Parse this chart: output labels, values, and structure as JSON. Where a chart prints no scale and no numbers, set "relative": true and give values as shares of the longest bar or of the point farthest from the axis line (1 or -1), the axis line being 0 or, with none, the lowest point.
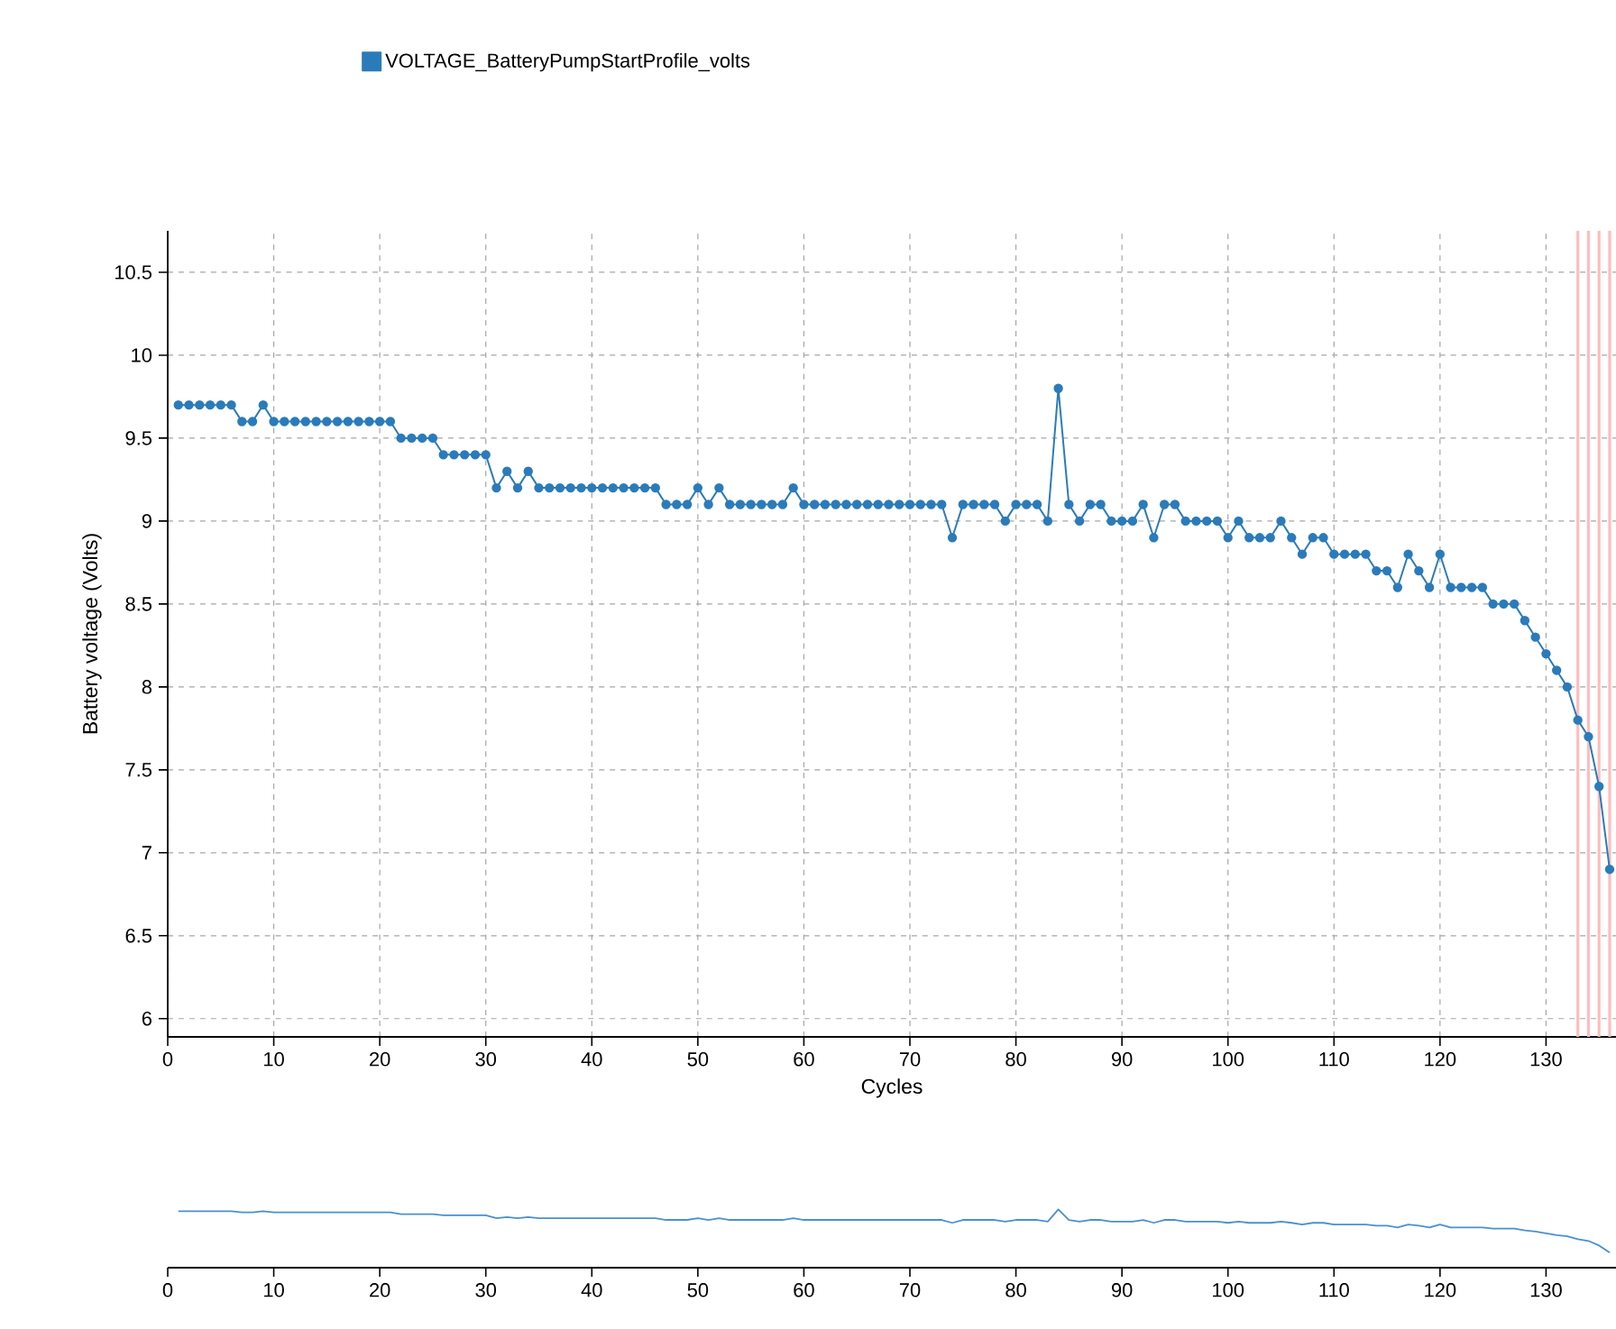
{
  "chart_data": [
    {
      "type": "line",
      "xlabel": "Cycles",
      "ylabel": "Battery voltage (Volts)",
      "x": [
        1,
        2,
        3,
        4,
        5,
        6,
        7,
        8,
        9,
        10,
        11,
        12,
        13,
        14,
        15,
        16,
        17,
        18,
        19,
        20,
        21,
        22,
        23,
        24,
        25,
        26,
        27,
        28,
        29,
        30,
        31,
        32,
        33,
        34,
        35,
        36,
        37,
        38,
        39,
        40,
        41,
        42,
        43,
        44,
        45,
        46,
        47,
        48,
        49,
        50,
        51,
        52,
        53,
        54,
        55,
        56,
        57,
        58,
        59,
        60,
        61,
        62,
        63,
        64,
        65,
        66,
        67,
        68,
        69,
        70,
        71,
        72,
        73,
        74,
        75,
        76,
        77,
        78,
        79,
        80,
        81,
        82,
        83,
        84,
        85,
        86,
        87,
        88,
        89,
        90,
        91,
        92,
        93,
        94,
        95,
        96,
        97,
        98,
        99,
        100,
        101,
        102,
        103,
        104,
        105,
        106,
        107,
        108,
        109,
        110,
        111,
        112,
        113,
        114,
        115,
        116,
        117,
        118,
        119,
        120,
        121,
        122,
        123,
        124,
        125,
        126,
        127,
        128,
        129,
        130,
        131,
        132,
        133,
        134,
        135,
        136
      ],
      "series": [
        {
          "name": "VOLTAGE_BatteryPumpStartProfile_volts",
          "color": "#2b7bba",
          "values": [
            9.7,
            9.7,
            9.7,
            9.7,
            9.7,
            9.7,
            9.6,
            9.6,
            9.7,
            9.6,
            9.6,
            9.6,
            9.6,
            9.6,
            9.6,
            9.6,
            9.6,
            9.6,
            9.6,
            9.6,
            9.6,
            9.5,
            9.5,
            9.5,
            9.5,
            9.4,
            9.4,
            9.4,
            9.4,
            9.4,
            9.2,
            9.3,
            9.2,
            9.3,
            9.2,
            9.2,
            9.2,
            9.2,
            9.2,
            9.2,
            9.2,
            9.2,
            9.2,
            9.2,
            9.2,
            9.2,
            9.1,
            9.1,
            9.1,
            9.2,
            9.1,
            9.2,
            9.1,
            9.1,
            9.1,
            9.1,
            9.1,
            9.1,
            9.2,
            9.1,
            9.1,
            9.1,
            9.1,
            9.1,
            9.1,
            9.1,
            9.1,
            9.1,
            9.1,
            9.1,
            9.1,
            9.1,
            9.1,
            8.9,
            9.1,
            9.1,
            9.1,
            9.1,
            9.0,
            9.1,
            9.1,
            9.1,
            9.0,
            9.8,
            9.1,
            9.0,
            9.1,
            9.1,
            9.0,
            9.0,
            9.0,
            9.1,
            8.9,
            9.1,
            9.1,
            9.0,
            9.0,
            9.0,
            9.0,
            8.9,
            9.0,
            8.9,
            8.9,
            8.9,
            9.0,
            8.9,
            8.8,
            8.9,
            8.9,
            8.8,
            8.8,
            8.8,
            8.8,
            8.7,
            8.7,
            8.6,
            8.8,
            8.7,
            8.6,
            8.8,
            8.6,
            8.6,
            8.6,
            8.6,
            8.5,
            8.5,
            8.5,
            8.4,
            8.3,
            8.2,
            8.1,
            8.0,
            7.8,
            7.7,
            7.4,
            6.9
          ]
        }
      ],
      "xlim": [
        0,
        136.6
      ],
      "xticks": [
        0,
        10,
        20,
        30,
        40,
        50,
        60,
        70,
        80,
        90,
        100,
        110,
        120,
        130
      ],
      "ylim": [
        5.89,
        10.75
      ],
      "yticks": [
        6,
        6.5,
        7,
        7.5,
        8,
        8.5,
        9,
        9.5,
        10,
        10.5
      ],
      "grid": true,
      "legend": "top",
      "marker": "circle",
      "line_style": "solid",
      "ref_lines": [
        {
          "axis": "x",
          "value": 133,
          "color": "#ffbcbc"
        },
        {
          "axis": "x",
          "value": 134,
          "color": "#ffbcbc"
        },
        {
          "axis": "x",
          "value": 135,
          "color": "#ffbcbc"
        },
        {
          "axis": "x",
          "value": 136,
          "color": "#ffbcbc"
        }
      ]
    },
    {
      "type": "line",
      "x": [
        1,
        2,
        3,
        4,
        5,
        6,
        7,
        8,
        9,
        10,
        11,
        12,
        13,
        14,
        15,
        16,
        17,
        18,
        19,
        20,
        21,
        22,
        23,
        24,
        25,
        26,
        27,
        28,
        29,
        30,
        31,
        32,
        33,
        34,
        35,
        36,
        37,
        38,
        39,
        40,
        41,
        42,
        43,
        44,
        45,
        46,
        47,
        48,
        49,
        50,
        51,
        52,
        53,
        54,
        55,
        56,
        57,
        58,
        59,
        60,
        61,
        62,
        63,
        64,
        65,
        66,
        67,
        68,
        69,
        70,
        71,
        72,
        73,
        74,
        75,
        76,
        77,
        78,
        79,
        80,
        81,
        82,
        83,
        84,
        85,
        86,
        87,
        88,
        89,
        90,
        91,
        92,
        93,
        94,
        95,
        96,
        97,
        98,
        99,
        100,
        101,
        102,
        103,
        104,
        105,
        106,
        107,
        108,
        109,
        110,
        111,
        112,
        113,
        114,
        115,
        116,
        117,
        118,
        119,
        120,
        121,
        122,
        123,
        124,
        125,
        126,
        127,
        128,
        129,
        130,
        131,
        132,
        133,
        134,
        135,
        136
      ],
      "series": [
        {
          "color": "#4a90d0",
          "values": [
            0.97,
            0.97,
            0.97,
            0.97,
            0.97,
            0.97,
            0.95,
            0.95,
            0.97,
            0.95,
            0.95,
            0.95,
            0.95,
            0.95,
            0.95,
            0.95,
            0.95,
            0.95,
            0.95,
            0.95,
            0.95,
            0.92,
            0.92,
            0.92,
            0.92,
            0.9,
            0.9,
            0.9,
            0.9,
            0.9,
            0.85,
            0.87,
            0.85,
            0.87,
            0.85,
            0.85,
            0.85,
            0.85,
            0.85,
            0.85,
            0.85,
            0.85,
            0.85,
            0.85,
            0.85,
            0.85,
            0.82,
            0.82,
            0.82,
            0.85,
            0.82,
            0.85,
            0.82,
            0.82,
            0.82,
            0.82,
            0.82,
            0.82,
            0.85,
            0.82,
            0.82,
            0.82,
            0.82,
            0.82,
            0.82,
            0.82,
            0.82,
            0.82,
            0.82,
            0.82,
            0.82,
            0.82,
            0.82,
            0.77,
            0.82,
            0.82,
            0.82,
            0.82,
            0.79,
            0.82,
            0.82,
            0.82,
            0.79,
            1.0,
            0.82,
            0.79,
            0.82,
            0.82,
            0.79,
            0.79,
            0.79,
            0.82,
            0.77,
            0.82,
            0.82,
            0.79,
            0.79,
            0.79,
            0.79,
            0.77,
            0.79,
            0.77,
            0.77,
            0.77,
            0.79,
            0.77,
            0.74,
            0.77,
            0.77,
            0.74,
            0.74,
            0.74,
            0.74,
            0.72,
            0.72,
            0.69,
            0.74,
            0.72,
            0.69,
            0.74,
            0.69,
            0.69,
            0.69,
            0.69,
            0.67,
            0.67,
            0.67,
            0.64,
            0.62,
            0.59,
            0.56,
            0.54,
            0.49,
            0.46,
            0.38,
            0.26
          ]
        }
      ],
      "xlim": [
        0,
        136.6
      ],
      "xticks": [
        0,
        10,
        20,
        30,
        40,
        50,
        60,
        70,
        80,
        90,
        100,
        110,
        120,
        130
      ],
      "relative": true,
      "tick_labels": "x",
      "marker": "none",
      "line_style": "solid"
    }
  ]
}
